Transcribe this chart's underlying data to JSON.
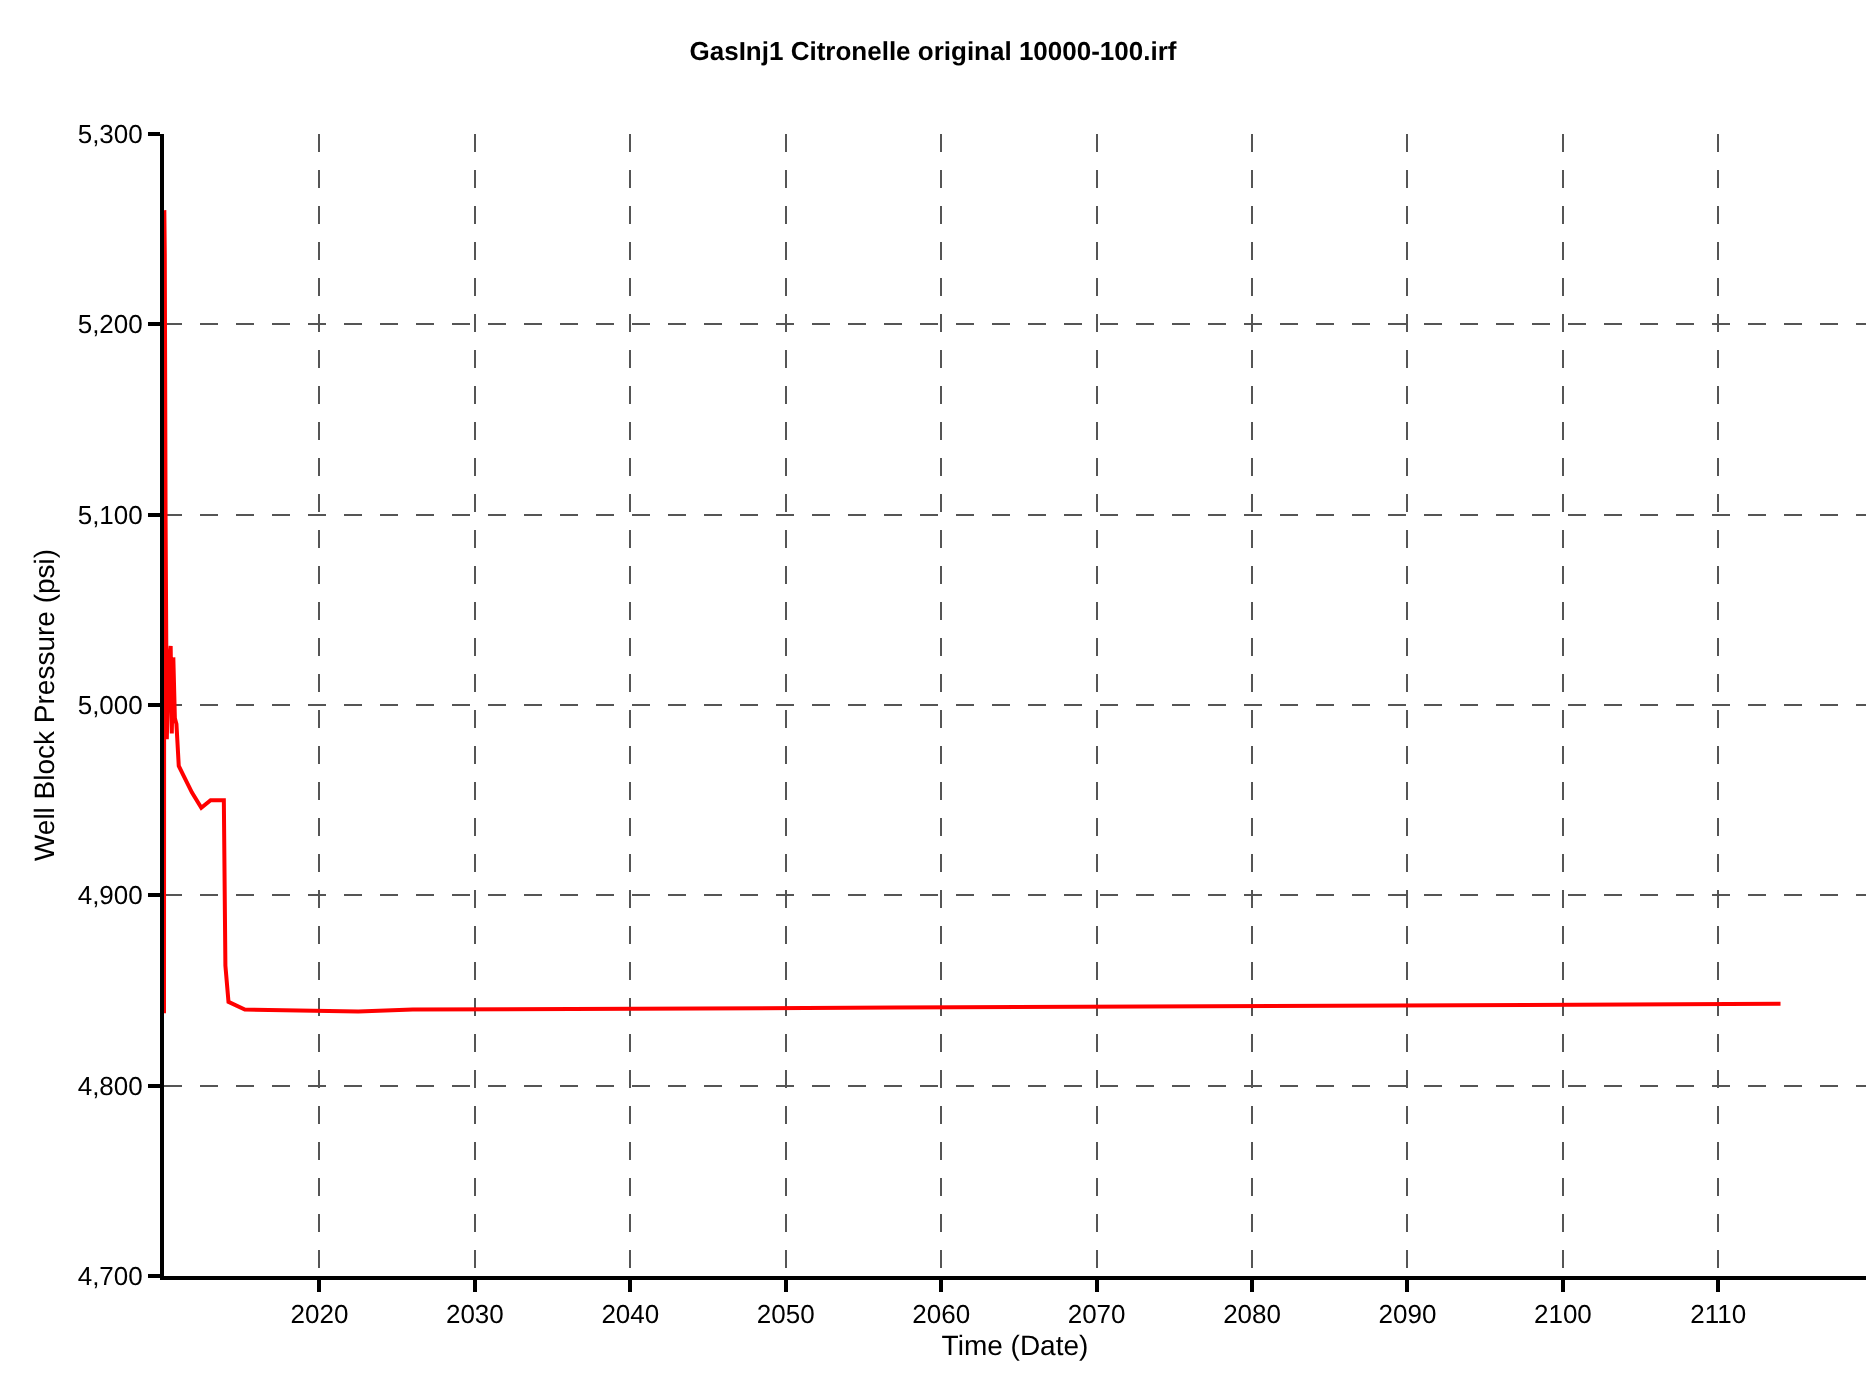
{
  "chart_data": {
    "type": "line",
    "title": "GasInj1 Citronelle original 10000-100.irf",
    "xlabel": "Time (Date)",
    "ylabel": "Well Block Pressure (psi)",
    "xlim": [
      2010,
      2119.5
    ],
    "ylim": [
      4700,
      5300
    ],
    "xticks": [
      2020,
      2030,
      2040,
      2050,
      2060,
      2070,
      2080,
      2090,
      2100,
      2110
    ],
    "yticks": [
      {
        "value": 4700,
        "label": "4,700"
      },
      {
        "value": 4800,
        "label": "4,800"
      },
      {
        "value": 4900,
        "label": "4,900"
      },
      {
        "value": 5000,
        "label": "5,000"
      },
      {
        "value": 5100,
        "label": "5,100"
      },
      {
        "value": 5200,
        "label": "5,200"
      },
      {
        "value": 5300,
        "label": "5,300"
      }
    ],
    "grid": true,
    "legend": false,
    "marker": "none",
    "line_style": "solid",
    "series": [
      {
        "color": "#ff0000",
        "x": [
          2010.0,
          2010.02,
          2010.05,
          2010.1,
          2010.18,
          2010.3,
          2010.43,
          2010.5,
          2010.6,
          2010.7,
          2010.8,
          2010.95,
          2011.25,
          2011.8,
          2012.4,
          2013.0,
          2013.85,
          2013.95,
          2014.15,
          2015.2,
          2022.5,
          2026,
          2057,
          2114
        ],
        "values": [
          4838,
          5260,
          5237,
          5100,
          4982,
          5020,
          5031,
          4985,
          5025,
          4993,
          4990,
          4968,
          4963,
          4954,
          4946,
          4950,
          4950,
          4863,
          4844,
          4840,
          4839,
          4840,
          4841,
          4843
        ]
      }
    ]
  }
}
